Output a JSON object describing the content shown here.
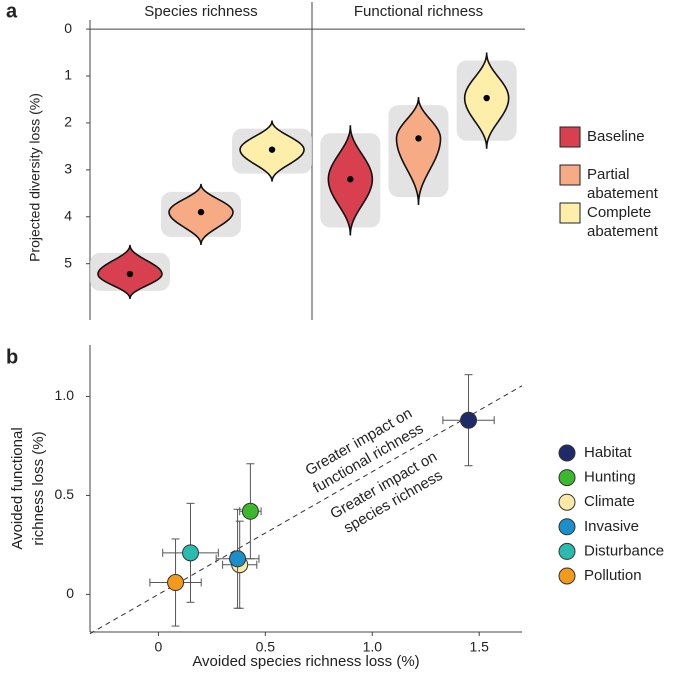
{
  "chart_data": [
    {
      "type": "violin",
      "panel": "a",
      "facets": [
        "Species richness",
        "Functional richness"
      ],
      "ylabel": "Projected diversity loss (%)",
      "ylim": [
        -0.3,
        6.2
      ],
      "invert_y": true,
      "yticks": [
        0,
        1,
        2,
        3,
        4,
        5
      ],
      "series": [
        {
          "name": "Baseline",
          "color": "#d9404f",
          "values": [
            5.22,
            3.2
          ],
          "low": [
            4.6,
            2.05
          ],
          "high": [
            5.75,
            4.4
          ]
        },
        {
          "name": "Partial abatement",
          "color": "#f6ab84",
          "values": [
            3.9,
            2.33
          ],
          "low": [
            3.3,
            1.45
          ],
          "high": [
            4.6,
            3.75
          ]
        },
        {
          "name": "Complete abatement",
          "color": "#fdeeaa",
          "values": [
            2.57,
            1.47
          ],
          "low": [
            1.95,
            0.5
          ],
          "high": [
            3.25,
            2.55
          ]
        }
      ]
    },
    {
      "type": "scatter",
      "panel": "b",
      "xlabel": "Avoided species richness loss (%)",
      "ylabel": "Avoided functional richness loss (%)",
      "xlim": [
        -0.32,
        1.7
      ],
      "ylim": [
        -0.19,
        1.26
      ],
      "xticks": [
        0,
        0.5,
        {
          "value": 1,
          "label": "1.0"
        },
        1.5
      ],
      "yticks": [
        0,
        0.5,
        {
          "value": 1,
          "label": "1.0"
        }
      ],
      "reference_line": {
        "slope": 0.62,
        "intercept": 0
      },
      "annotations": [
        "Greater impact on functional richness",
        "Greater impact on species richness"
      ],
      "series": [
        {
          "name": "Habitat",
          "color": "#1f2a6b",
          "x": [
            1.45
          ],
          "values": [
            0.88
          ],
          "xerr": [
            0.12
          ],
          "yerr": [
            0.23
          ]
        },
        {
          "name": "Hunting",
          "color": "#3cb82e",
          "x": [
            0.43
          ],
          "values": [
            0.42
          ],
          "xerr": [
            0.05
          ],
          "yerr": [
            0.24
          ]
        },
        {
          "name": "Climate",
          "color": "#fbe9a6",
          "x": [
            0.38
          ],
          "values": [
            0.15
          ],
          "xerr": [
            0.08
          ],
          "yerr": [
            0.22
          ]
        },
        {
          "name": "Invasive",
          "color": "#1b8fc9",
          "x": [
            0.37
          ],
          "values": [
            0.18
          ],
          "xerr": [
            0.1
          ],
          "yerr": [
            0.25
          ]
        },
        {
          "name": "Disturbance",
          "color": "#2bbab0",
          "x": [
            0.15
          ],
          "values": [
            0.21
          ],
          "xerr": [
            0.13
          ],
          "yerr": [
            0.25
          ]
        },
        {
          "name": "Pollution",
          "color": "#f39a1c",
          "x": [
            0.08
          ],
          "values": [
            0.06
          ],
          "xerr": [
            0.12
          ],
          "yerr": [
            0.22
          ]
        }
      ]
    }
  ]
}
